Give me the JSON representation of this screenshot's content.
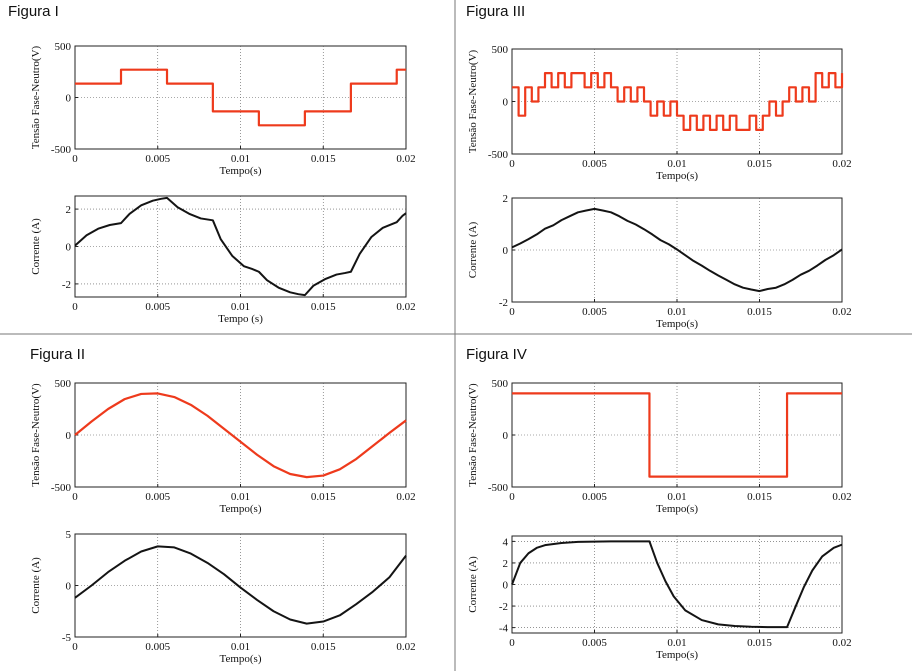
{
  "colors": {
    "voltage": "#ee3a1c",
    "current": "#141414"
  },
  "chart_data": [
    {
      "figure": "Figura I",
      "panel": "voltage",
      "type": "line",
      "title": "Figura I",
      "xlabel": "Tempo(s)",
      "ylabel": "Tensão Fase-Neutro(V)",
      "xlim": [
        0,
        0.02
      ],
      "ylim": [
        -500,
        500
      ],
      "x_ticks": [
        0,
        0.005,
        0.01,
        0.015,
        0.02
      ],
      "x_tick_labels": [
        "0",
        "0.005",
        "0.01",
        "0.015",
        "0.02"
      ],
      "y_ticks": [
        -500,
        0,
        500
      ],
      "y_tick_labels": [
        "-500",
        "0",
        "500"
      ],
      "grid": true,
      "series": [
        {
          "color": "#ee3a1c",
          "step": true,
          "x": [
            0,
            0.00278,
            0.00556,
            0.00833,
            0.01111,
            0.01389,
            0.01667,
            0.01944,
            0.02
          ],
          "y": [
            135,
            270,
            135,
            -135,
            -270,
            -135,
            135,
            270,
            270
          ]
        }
      ]
    },
    {
      "figure": "Figura I",
      "panel": "current",
      "type": "line",
      "xlabel": "Tempo (s)",
      "ylabel": "Corrente (A)",
      "xlim": [
        0,
        0.02
      ],
      "ylim": [
        -2.7,
        2.7
      ],
      "x_ticks": [
        0,
        0.005,
        0.01,
        0.015,
        0.02
      ],
      "x_tick_labels": [
        "0",
        "0.005",
        "0.01",
        "0.015",
        "0.02"
      ],
      "y_ticks": [
        -2,
        0,
        2
      ],
      "y_tick_labels": [
        "-2",
        "0",
        "2"
      ],
      "grid": true,
      "series": [
        {
          "color": "#141414",
          "x": [
            0,
            0.0007,
            0.0014,
            0.0021,
            0.00278,
            0.0033,
            0.004,
            0.0047,
            0.0052,
            0.00556,
            0.0062,
            0.0069,
            0.0076,
            0.00833,
            0.0088,
            0.0095,
            0.0102,
            0.0107,
            0.01111,
            0.0116,
            0.0123,
            0.013,
            0.0135,
            0.01389,
            0.0144,
            0.0151,
            0.0158,
            0.0163,
            0.01667,
            0.0172,
            0.0179,
            0.0186,
            0.0191,
            0.01944,
            0.0198,
            0.02
          ],
          "y": [
            0.05,
            0.6,
            0.95,
            1.15,
            1.25,
            1.75,
            2.2,
            2.45,
            2.55,
            2.6,
            2.1,
            1.75,
            1.5,
            1.4,
            0.4,
            -0.5,
            -1.05,
            -1.2,
            -1.35,
            -1.8,
            -2.2,
            -2.45,
            -2.55,
            -2.6,
            -2.1,
            -1.75,
            -1.5,
            -1.42,
            -1.35,
            -0.4,
            0.5,
            1.0,
            1.18,
            1.3,
            1.65,
            1.78
          ]
        }
      ]
    },
    {
      "figure": "Figura III",
      "panel": "voltage",
      "type": "line",
      "title": "Figura III",
      "xlabel": "Tempo(s)",
      "ylabel": "Tensão Fase-Neutro(V)",
      "xlim": [
        0,
        0.02
      ],
      "ylim": [
        -500,
        500
      ],
      "x_ticks": [
        0,
        0.005,
        0.01,
        0.015,
        0.02
      ],
      "x_tick_labels": [
        "0",
        "0.005",
        "0.01",
        "0.015",
        "0.02"
      ],
      "y_ticks": [
        -500,
        0,
        500
      ],
      "y_tick_labels": [
        "-500",
        "0",
        "500"
      ],
      "grid": true,
      "series": [
        {
          "color": "#ee3a1c",
          "step": true,
          "x": [
            0,
            0.0004,
            0.0008,
            0.0012,
            0.0016,
            0.002,
            0.0024,
            0.0028,
            0.0032,
            0.0036,
            0.004,
            0.0044,
            0.0048,
            0.0052,
            0.0056,
            0.006,
            0.0064,
            0.0068,
            0.0072,
            0.0076,
            0.008,
            0.0084,
            0.0088,
            0.0092,
            0.0096,
            0.01,
            0.0104,
            0.0108,
            0.0112,
            0.0116,
            0.012,
            0.0124,
            0.0128,
            0.0132,
            0.0136,
            0.014,
            0.0144,
            0.0148,
            0.0152,
            0.0156,
            0.016,
            0.0164,
            0.0168,
            0.0172,
            0.0176,
            0.018,
            0.0184,
            0.0188,
            0.0192,
            0.0196,
            0.02
          ],
          "y": [
            135,
            -135,
            135,
            0,
            135,
            270,
            135,
            270,
            135,
            270,
            270,
            135,
            270,
            135,
            270,
            135,
            0,
            135,
            0,
            135,
            0,
            -135,
            0,
            -135,
            0,
            -135,
            -270,
            -135,
            -270,
            -135,
            -270,
            -135,
            -270,
            -135,
            -270,
            -270,
            -135,
            -270,
            -135,
            0,
            -135,
            0,
            135,
            0,
            135,
            0,
            270,
            135,
            270,
            135,
            270
          ]
        }
      ]
    },
    {
      "figure": "Figura III",
      "panel": "current",
      "type": "line",
      "xlabel": "Tempo(s)",
      "ylabel": "Corrente (A)",
      "xlim": [
        0,
        0.02
      ],
      "ylim": [
        -2,
        2
      ],
      "x_ticks": [
        0,
        0.005,
        0.01,
        0.015,
        0.02
      ],
      "x_tick_labels": [
        "0",
        "0.005",
        "0.01",
        "0.015",
        "0.02"
      ],
      "y_ticks": [
        -2,
        0,
        2
      ],
      "y_tick_labels": [
        "-2",
        "0",
        "2"
      ],
      "grid": true,
      "series": [
        {
          "color": "#141414",
          "x": [
            0,
            0.0005,
            0.001,
            0.0015,
            0.002,
            0.0025,
            0.003,
            0.0035,
            0.004,
            0.0045,
            0.005,
            0.0055,
            0.006,
            0.0065,
            0.007,
            0.0075,
            0.008,
            0.0085,
            0.009,
            0.0095,
            0.01,
            0.0105,
            0.011,
            0.0115,
            0.012,
            0.0125,
            0.013,
            0.0135,
            0.014,
            0.0145,
            0.015,
            0.0155,
            0.016,
            0.0165,
            0.017,
            0.0175,
            0.018,
            0.0185,
            0.019,
            0.0195,
            0.02
          ],
          "y": [
            0.1,
            0.25,
            0.42,
            0.6,
            0.82,
            0.95,
            1.15,
            1.3,
            1.45,
            1.52,
            1.58,
            1.52,
            1.45,
            1.3,
            1.12,
            0.98,
            0.8,
            0.6,
            0.38,
            0.22,
            0.02,
            -0.2,
            -0.42,
            -0.6,
            -0.8,
            -0.98,
            -1.15,
            -1.32,
            -1.45,
            -1.52,
            -1.58,
            -1.5,
            -1.45,
            -1.32,
            -1.15,
            -0.95,
            -0.8,
            -0.6,
            -0.38,
            -0.2,
            0.02
          ]
        }
      ]
    },
    {
      "figure": "Figura II",
      "panel": "voltage",
      "type": "line",
      "title": "Figura II",
      "xlabel": "Tempo(s)",
      "ylabel": "Tensão Fase-Neutro(V)",
      "xlim": [
        0,
        0.02
      ],
      "ylim": [
        -500,
        500
      ],
      "x_ticks": [
        0,
        0.005,
        0.01,
        0.015,
        0.02
      ],
      "x_tick_labels": [
        "0",
        "0.005",
        "0.01",
        "0.015",
        "0.02"
      ],
      "y_ticks": [
        -500,
        0,
        500
      ],
      "y_tick_labels": [
        "-500",
        "0",
        "500"
      ],
      "grid": true,
      "series": [
        {
          "color": "#ee3a1c",
          "x": [
            0,
            0.001,
            0.002,
            0.003,
            0.004,
            0.005,
            0.006,
            0.007,
            0.008,
            0.009,
            0.01,
            0.011,
            0.012,
            0.013,
            0.014,
            0.015,
            0.016,
            0.017,
            0.018,
            0.019,
            0.02
          ],
          "y": [
            0,
            130,
            250,
            345,
            395,
            400,
            365,
            290,
            185,
            60,
            -65,
            -190,
            -300,
            -375,
            -405,
            -390,
            -330,
            -230,
            -105,
            20,
            140
          ]
        }
      ]
    },
    {
      "figure": "Figura II",
      "panel": "current",
      "type": "line",
      "xlabel": "Tempo(s)",
      "ylabel": "Corrente (A)",
      "xlim": [
        0,
        0.02
      ],
      "ylim": [
        -5,
        5
      ],
      "x_ticks": [
        0,
        0.005,
        0.01,
        0.015,
        0.02
      ],
      "x_tick_labels": [
        "0",
        "0.005",
        "0.01",
        "0.015",
        "0.02"
      ],
      "y_ticks": [
        -5,
        0,
        5
      ],
      "y_tick_labels": [
        "-5",
        "0",
        "5"
      ],
      "grid": true,
      "series": [
        {
          "color": "#141414",
          "x": [
            0,
            0.001,
            0.002,
            0.003,
            0.004,
            0.005,
            0.006,
            0.007,
            0.008,
            0.009,
            0.01,
            0.011,
            0.012,
            0.013,
            0.014,
            0.015,
            0.016,
            0.017,
            0.018,
            0.019,
            0.02
          ],
          "y": [
            -1.2,
            0.0,
            1.3,
            2.4,
            3.3,
            3.8,
            3.7,
            3.1,
            2.2,
            1.1,
            -0.2,
            -1.4,
            -2.5,
            -3.3,
            -3.7,
            -3.5,
            -2.9,
            -1.8,
            -0.6,
            0.8,
            2.9
          ]
        }
      ]
    },
    {
      "figure": "Figura IV",
      "panel": "voltage",
      "type": "line",
      "title": "Figura IV",
      "xlabel": "Tempo(s)",
      "ylabel": "Tensão Fase-Neutro(V)",
      "xlim": [
        0,
        0.02
      ],
      "ylim": [
        -500,
        500
      ],
      "x_ticks": [
        0,
        0.005,
        0.01,
        0.015,
        0.02
      ],
      "x_tick_labels": [
        "0",
        "0.005",
        "0.01",
        "0.015",
        "0.02"
      ],
      "y_ticks": [
        -500,
        0,
        500
      ],
      "y_tick_labels": [
        "-500",
        "0",
        "500"
      ],
      "grid": true,
      "series": [
        {
          "color": "#ee3a1c",
          "step": true,
          "x": [
            0,
            0.00833,
            0.01667,
            0.02
          ],
          "y": [
            400,
            -400,
            400,
            400
          ]
        }
      ]
    },
    {
      "figure": "Figura IV",
      "panel": "current",
      "type": "line",
      "xlabel": "Tempo(s)",
      "ylabel": "Corrente (A)",
      "xlim": [
        0,
        0.02
      ],
      "ylim": [
        -4.5,
        4.5
      ],
      "x_ticks": [
        0,
        0.005,
        0.01,
        0.015,
        0.02
      ],
      "x_tick_labels": [
        "0",
        "0.005",
        "0.01",
        "0.015",
        "0.02"
      ],
      "y_ticks": [
        -4,
        -2,
        0,
        2,
        4
      ],
      "y_tick_labels": [
        "-4",
        "-2",
        "0",
        "2",
        "4"
      ],
      "grid": true,
      "series": [
        {
          "color": "#141414",
          "x": [
            0,
            0.0005,
            0.001,
            0.0015,
            0.002,
            0.003,
            0.004,
            0.005,
            0.006,
            0.007,
            0.00833,
            0.0088,
            0.0093,
            0.0098,
            0.0105,
            0.0115,
            0.0125,
            0.0135,
            0.0145,
            0.0155,
            0.01667,
            0.0172,
            0.0177,
            0.0182,
            0.0188,
            0.0195,
            0.02
          ],
          "y": [
            0.0,
            2.0,
            2.9,
            3.4,
            3.65,
            3.85,
            3.95,
            3.98,
            4.0,
            4.0,
            4.0,
            2.0,
            0.3,
            -1.1,
            -2.4,
            -3.3,
            -3.7,
            -3.85,
            -3.92,
            -3.95,
            -3.95,
            -2.0,
            -0.2,
            1.3,
            2.6,
            3.4,
            3.7
          ]
        }
      ]
    }
  ]
}
